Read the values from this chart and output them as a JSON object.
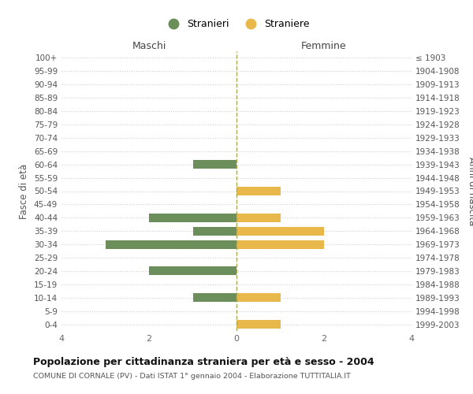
{
  "age_groups": [
    "100+",
    "95-99",
    "90-94",
    "85-89",
    "80-84",
    "75-79",
    "70-74",
    "65-69",
    "60-64",
    "55-59",
    "50-54",
    "45-49",
    "40-44",
    "35-39",
    "30-34",
    "25-29",
    "20-24",
    "15-19",
    "10-14",
    "5-9",
    "0-4"
  ],
  "birth_years": [
    "≤ 1903",
    "1904-1908",
    "1909-1913",
    "1914-1918",
    "1919-1923",
    "1924-1928",
    "1929-1933",
    "1934-1938",
    "1939-1943",
    "1944-1948",
    "1949-1953",
    "1954-1958",
    "1959-1963",
    "1964-1968",
    "1969-1973",
    "1974-1978",
    "1979-1983",
    "1984-1988",
    "1989-1993",
    "1994-1998",
    "1999-2003"
  ],
  "maschi": [
    0,
    0,
    0,
    0,
    0,
    0,
    0,
    0,
    1,
    0,
    0,
    0,
    2,
    1,
    3,
    0,
    2,
    0,
    1,
    0,
    0
  ],
  "femmine": [
    0,
    0,
    0,
    0,
    0,
    0,
    0,
    0,
    0,
    0,
    1,
    0,
    1,
    2,
    2,
    0,
    0,
    0,
    1,
    0,
    1
  ],
  "color_maschi": "#6b8e5a",
  "color_femmine": "#e8b84b",
  "title": "Popolazione per cittadinanza straniera per età e sesso - 2004",
  "subtitle": "COMUNE DI CORNALE (PV) - Dati ISTAT 1° gennaio 2004 - Elaborazione TUTTITALIA.IT",
  "xlabel_left": "Maschi",
  "xlabel_right": "Femmine",
  "ylabel_left": "Fasce di età",
  "ylabel_right": "Anni di nascita",
  "legend_maschi": "Stranieri",
  "legend_femmine": "Straniere",
  "xlim": 4,
  "background_color": "#ffffff",
  "grid_color": "#d0d0d0"
}
